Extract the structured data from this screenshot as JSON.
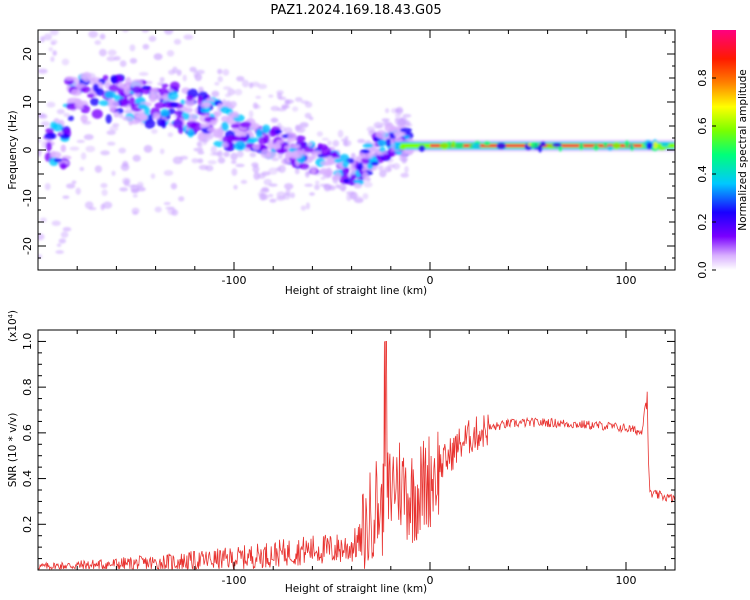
{
  "figure_title": "PAZ1.2024.169.18.43.G05",
  "chart_data": [
    {
      "type": "heatmap",
      "title": "PAZ1.2024.169.18.43.G05",
      "xlabel": "Height of straight line (km)",
      "ylabel": "Frequency (Hz)",
      "xlim": [
        -200,
        125
      ],
      "ylim": [
        -25,
        25
      ],
      "x_ticks": [
        -100,
        0,
        100
      ],
      "y_ticks": [
        -20,
        -10,
        0,
        10,
        20
      ],
      "colorbar": {
        "label": "Normalized spectral amplitude",
        "range": [
          0,
          1
        ],
        "ticks": [
          0.0,
          0.2,
          0.4,
          0.6,
          0.8
        ],
        "colormap": [
          "#ffffff",
          "#d9b0ff",
          "#7a00ff",
          "#1a00ff",
          "#00c8ff",
          "#00ff7a",
          "#7aff00",
          "#ffff00",
          "#ff8000",
          "#ff1a00",
          "#ff0080"
        ]
      },
      "ridge": [
        {
          "x": -185,
          "y": 11
        },
        {
          "x": -165,
          "y": 11
        },
        {
          "x": -150,
          "y": 10
        },
        {
          "x": -130,
          "y": 9
        },
        {
          "x": -115,
          "y": 7
        },
        {
          "x": -100,
          "y": 4
        },
        {
          "x": -85,
          "y": 2
        },
        {
          "x": -70,
          "y": 0
        },
        {
          "x": -55,
          "y": -2
        },
        {
          "x": -42,
          "y": -4
        },
        {
          "x": -35,
          "y": -4
        },
        {
          "x": -28,
          "y": 0
        },
        {
          "x": -20,
          "y": 2
        },
        {
          "x": -10,
          "y": 1.5
        },
        {
          "x": 0,
          "y": 1
        },
        {
          "x": 20,
          "y": 1
        },
        {
          "x": 50,
          "y": 0.8
        },
        {
          "x": 80,
          "y": 1
        },
        {
          "x": 100,
          "y": 1.5
        },
        {
          "x": 110,
          "y": 0.5
        },
        {
          "x": 125,
          "y": 1
        }
      ]
    },
    {
      "type": "line",
      "xlabel": "Height of straight line (km)",
      "ylabel": "SNR (10 * v/v)",
      "y_multiplier": "(x10⁴)",
      "xlim": [
        -200,
        125
      ],
      "ylim": [
        0,
        1.05
      ],
      "x_ticks": [
        -100,
        0,
        100
      ],
      "y_ticks": [
        0.2,
        0.4,
        0.6,
        0.8,
        1.0
      ],
      "series": [
        {
          "color": "#e8322f",
          "x": [
            -200,
            -180,
            -160,
            -140,
            -120,
            -100,
            -90,
            -80,
            -70,
            -60,
            -50,
            -40,
            -33,
            -28,
            -25,
            -22,
            -20,
            -18,
            -15,
            -10,
            -5,
            0,
            5,
            10,
            15,
            20,
            25,
            30,
            35,
            40,
            50,
            60,
            70,
            80,
            90,
            100,
            105,
            108,
            110,
            111,
            112,
            113,
            115,
            120,
            125
          ],
          "y": [
            0.015,
            0.02,
            0.025,
            0.03,
            0.04,
            0.05,
            0.06,
            0.07,
            0.08,
            0.09,
            0.09,
            0.1,
            0.15,
            0.3,
            0.25,
            0.32,
            0.35,
            0.4,
            0.38,
            0.32,
            0.35,
            0.4,
            0.45,
            0.5,
            0.55,
            0.58,
            0.6,
            0.62,
            0.63,
            0.64,
            0.645,
            0.645,
            0.64,
            0.635,
            0.63,
            0.62,
            0.61,
            0.6,
            0.75,
            0.62,
            0.35,
            0.33,
            0.33,
            0.32,
            0.31
          ]
        }
      ]
    }
  ]
}
